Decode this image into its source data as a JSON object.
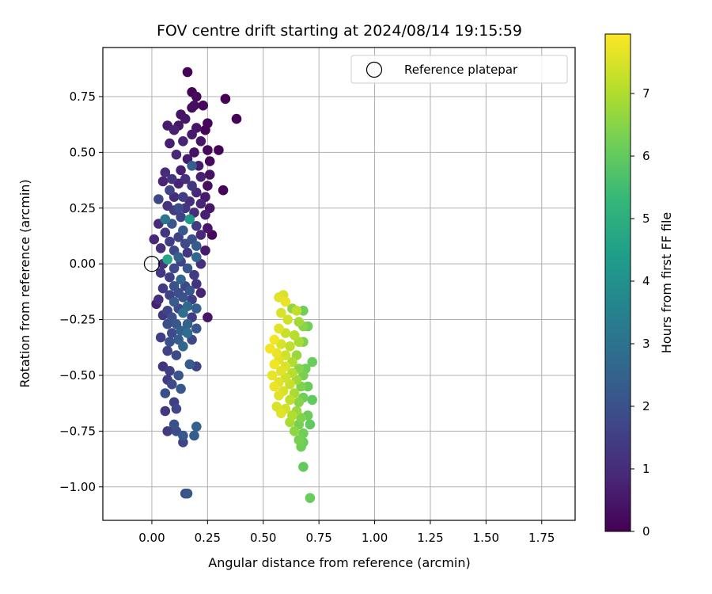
{
  "chart_data": {
    "type": "scatter",
    "title": "FOV centre drift starting at 2024/08/14 19:15:59",
    "xlabel": "Angular distance from reference (arcmin)",
    "ylabel": "Rotation from reference (arcmin)",
    "xlim": [
      -0.22,
      1.9
    ],
    "ylim": [
      -1.15,
      0.97
    ],
    "x_ticks": [
      0.0,
      0.25,
      0.5,
      0.75,
      1.0,
      1.25,
      1.5,
      1.75
    ],
    "x_tick_labels": [
      "0.00",
      "0.25",
      "0.50",
      "0.75",
      "1.00",
      "1.25",
      "1.50",
      "1.75"
    ],
    "y_ticks": [
      0.75,
      0.5,
      0.25,
      0.0,
      -0.25,
      -0.5,
      -0.75,
      -1.0
    ],
    "y_tick_labels": [
      "0.75",
      "0.50",
      "0.25",
      "0.00",
      "−0.25",
      "−0.50",
      "−0.75",
      "−1.00"
    ],
    "grid": true,
    "legend": {
      "placement": "top-right",
      "entries": [
        {
          "label": "Reference platepar",
          "marker": "open-circle"
        }
      ]
    },
    "reference_point": {
      "x": 0.0,
      "y": 0.0
    },
    "colorbar": {
      "label": "Hours from first FF file",
      "min": 0,
      "max": 7.95,
      "ticks": [
        0,
        1,
        2,
        3,
        4,
        5,
        6,
        7
      ],
      "tick_labels": [
        "0",
        "1",
        "2",
        "3",
        "4",
        "5",
        "6",
        "7"
      ],
      "colormap": "viridis"
    },
    "colormap_stops": [
      "#440154",
      "#482878",
      "#3e4989",
      "#31688e",
      "#26828e",
      "#1f9e89",
      "#35b779",
      "#6ece58",
      "#b5de2b",
      "#fde725"
    ],
    "series": [
      {
        "points": [
          [
            0.16,
            0.86,
            0.05
          ],
          [
            0.33,
            0.74,
            0.05
          ],
          [
            0.38,
            0.65,
            0.05
          ],
          [
            0.18,
            0.77,
            0.1
          ],
          [
            0.2,
            0.75,
            0.2
          ],
          [
            0.19,
            0.71,
            0.3
          ],
          [
            0.18,
            0.7,
            0.25
          ],
          [
            0.13,
            0.67,
            0.4
          ],
          [
            0.23,
            0.71,
            0.15
          ],
          [
            0.15,
            0.65,
            0.5
          ],
          [
            0.25,
            0.63,
            0.1
          ],
          [
            0.07,
            0.62,
            0.6
          ],
          [
            0.1,
            0.6,
            0.7
          ],
          [
            0.12,
            0.62,
            0.5
          ],
          [
            0.2,
            0.61,
            0.45
          ],
          [
            0.24,
            0.6,
            0.1
          ],
          [
            0.18,
            0.58,
            0.6
          ],
          [
            0.08,
            0.54,
            0.7
          ],
          [
            0.14,
            0.55,
            0.8
          ],
          [
            0.22,
            0.55,
            0.5
          ],
          [
            0.3,
            0.51,
            0.1
          ],
          [
            0.25,
            0.51,
            0.15
          ],
          [
            0.19,
            0.5,
            0.4
          ],
          [
            0.11,
            0.49,
            0.9
          ],
          [
            0.16,
            0.47,
            0.6
          ],
          [
            0.26,
            0.46,
            0.2
          ],
          [
            0.21,
            0.44,
            0.6
          ],
          [
            0.18,
            0.44,
            2.4
          ],
          [
            0.13,
            0.42,
            0.7
          ],
          [
            0.06,
            0.41,
            1.0
          ],
          [
            0.26,
            0.4,
            0.4
          ],
          [
            0.22,
            0.39,
            0.7
          ],
          [
            0.15,
            0.38,
            1.1
          ],
          [
            0.09,
            0.38,
            1.2
          ],
          [
            0.05,
            0.37,
            0.8
          ],
          [
            0.12,
            0.36,
            0.8
          ],
          [
            0.18,
            0.35,
            1.3
          ],
          [
            0.25,
            0.35,
            0.3
          ],
          [
            0.08,
            0.33,
            1.6
          ],
          [
            0.32,
            0.33,
            0.1
          ],
          [
            0.2,
            0.32,
            0.9
          ],
          [
            0.14,
            0.3,
            1.5
          ],
          [
            0.1,
            0.3,
            1.0
          ],
          [
            0.24,
            0.3,
            0.6
          ],
          [
            0.03,
            0.29,
            1.7
          ],
          [
            0.17,
            0.28,
            1.1
          ],
          [
            0.22,
            0.27,
            0.8
          ],
          [
            0.07,
            0.26,
            1.2
          ],
          [
            0.12,
            0.25,
            1.8
          ],
          [
            0.15,
            0.25,
            1.3
          ],
          [
            0.26,
            0.25,
            0.5
          ],
          [
            0.1,
            0.24,
            1.4
          ],
          [
            0.19,
            0.23,
            1.0
          ],
          [
            0.24,
            0.22,
            0.7
          ],
          [
            0.06,
            0.2,
            3.1
          ],
          [
            0.17,
            0.2,
            4.3
          ],
          [
            0.13,
            0.21,
            1.6
          ],
          [
            0.03,
            0.18,
            1.0
          ],
          [
            0.09,
            0.18,
            2.1
          ],
          [
            0.2,
            0.17,
            1.4
          ],
          [
            0.25,
            0.16,
            0.5
          ],
          [
            0.14,
            0.15,
            2.2
          ],
          [
            0.06,
            0.14,
            1.3
          ],
          [
            0.27,
            0.13,
            0.2
          ],
          [
            0.22,
            0.13,
            0.9
          ],
          [
            0.01,
            0.11,
            0.9
          ],
          [
            0.12,
            0.12,
            1.6
          ],
          [
            0.18,
            0.11,
            2.0
          ],
          [
            0.08,
            0.1,
            1.5
          ],
          [
            0.15,
            0.09,
            1.8
          ],
          [
            0.2,
            0.08,
            2.3
          ],
          [
            0.04,
            0.07,
            1.1
          ],
          [
            0.1,
            0.06,
            1.7
          ],
          [
            0.24,
            0.06,
            0.6
          ],
          [
            0.16,
            0.05,
            1.3
          ],
          [
            0.12,
            0.03,
            2.5
          ],
          [
            0.2,
            0.03,
            2.6
          ],
          [
            0.07,
            0.02,
            4.7
          ],
          [
            0.05,
            0.0,
            1.2
          ],
          [
            0.13,
            0.01,
            1.6
          ],
          [
            0.22,
            0.0,
            1.1
          ],
          [
            0.1,
            -0.02,
            1.8
          ],
          [
            0.16,
            -0.02,
            2.1
          ],
          [
            0.04,
            -0.04,
            1.3
          ],
          [
            0.19,
            -0.05,
            1.4
          ],
          [
            0.13,
            -0.07,
            2.6
          ],
          [
            0.08,
            -0.06,
            1.5
          ],
          [
            0.1,
            -0.1,
            2.0
          ],
          [
            0.15,
            -0.1,
            1.7
          ],
          [
            0.2,
            -0.09,
            1.2
          ],
          [
            0.05,
            -0.11,
            1.4
          ],
          [
            0.17,
            -0.12,
            2.2
          ],
          [
            0.12,
            -0.13,
            1.9
          ],
          [
            0.22,
            -0.13,
            0.8
          ],
          [
            0.08,
            -0.14,
            1.6
          ],
          [
            0.14,
            -0.15,
            2.0
          ],
          [
            0.18,
            -0.16,
            1.5
          ],
          [
            0.03,
            -0.16,
            1.1
          ],
          [
            0.1,
            -0.17,
            2.3
          ],
          [
            0.02,
            -0.18,
            0.7
          ],
          [
            0.16,
            -0.19,
            2.7
          ],
          [
            0.12,
            -0.2,
            1.8
          ],
          [
            0.07,
            -0.21,
            1.6
          ],
          [
            0.2,
            -0.2,
            2.4
          ],
          [
            0.05,
            -0.23,
            1.3
          ],
          [
            0.14,
            -0.22,
            2.9
          ],
          [
            0.09,
            -0.24,
            2.0
          ],
          [
            0.18,
            -0.24,
            1.5
          ],
          [
            0.25,
            -0.24,
            0.5
          ],
          [
            0.11,
            -0.27,
            2.2
          ],
          [
            0.16,
            -0.27,
            2.5
          ],
          [
            0.07,
            -0.27,
            1.9
          ],
          [
            0.13,
            -0.3,
            2.4
          ],
          [
            0.2,
            -0.29,
            2.1
          ],
          [
            0.09,
            -0.31,
            1.8
          ],
          [
            0.16,
            -0.31,
            2.8
          ],
          [
            0.04,
            -0.33,
            1.5
          ],
          [
            0.12,
            -0.34,
            2.3
          ],
          [
            0.18,
            -0.34,
            1.7
          ],
          [
            0.08,
            -0.35,
            2.0
          ],
          [
            0.14,
            -0.37,
            2.6
          ],
          [
            0.07,
            -0.39,
            1.6
          ],
          [
            0.11,
            -0.41,
            1.8
          ],
          [
            0.05,
            -0.46,
            1.2
          ],
          [
            0.17,
            -0.45,
            2.3
          ],
          [
            0.2,
            -0.46,
            1.6
          ],
          [
            0.08,
            -0.48,
            1.5
          ],
          [
            0.12,
            -0.5,
            2.1
          ],
          [
            0.07,
            -0.52,
            1.4
          ],
          [
            0.09,
            -0.54,
            1.8
          ],
          [
            0.13,
            -0.56,
            2.2
          ],
          [
            0.06,
            -0.58,
            1.9
          ],
          [
            0.1,
            -0.62,
            1.5
          ],
          [
            0.06,
            -0.66,
            1.3
          ],
          [
            0.11,
            -0.65,
            1.7
          ],
          [
            0.1,
            -0.72,
            2.0
          ],
          [
            0.07,
            -0.75,
            1.4
          ],
          [
            0.11,
            -0.75,
            1.9
          ],
          [
            0.14,
            -0.77,
            2.2
          ],
          [
            0.2,
            -0.73,
            2.5
          ],
          [
            0.19,
            -0.77,
            2.3
          ],
          [
            0.14,
            -0.8,
            1.6
          ],
          [
            0.15,
            -1.03,
            1.8
          ],
          [
            0.16,
            -1.03,
            2.2
          ]
        ]
      },
      {
        "points": [
          [
            0.57,
            -0.15,
            7.6
          ],
          [
            0.59,
            -0.14,
            7.5
          ],
          [
            0.6,
            -0.17,
            7.7
          ],
          [
            0.65,
            -0.21,
            7.2
          ],
          [
            0.68,
            -0.21,
            6.2
          ],
          [
            0.63,
            -0.2,
            6.6
          ],
          [
            0.58,
            -0.22,
            7.5
          ],
          [
            0.61,
            -0.25,
            7.4
          ],
          [
            0.66,
            -0.26,
            6.8
          ],
          [
            0.68,
            -0.28,
            6.5
          ],
          [
            0.7,
            -0.28,
            6.2
          ],
          [
            0.57,
            -0.29,
            7.6
          ],
          [
            0.6,
            -0.31,
            7.3
          ],
          [
            0.64,
            -0.32,
            7.1
          ],
          [
            0.55,
            -0.34,
            7.8
          ],
          [
            0.66,
            -0.35,
            6.9
          ],
          [
            0.68,
            -0.35,
            6.4
          ],
          [
            0.58,
            -0.36,
            7.5
          ],
          [
            0.62,
            -0.37,
            7.2
          ],
          [
            0.53,
            -0.38,
            7.8
          ],
          [
            0.56,
            -0.4,
            7.7
          ],
          [
            0.6,
            -0.41,
            7.4
          ],
          [
            0.65,
            -0.41,
            6.7
          ],
          [
            0.57,
            -0.43,
            7.6
          ],
          [
            0.63,
            -0.44,
            7.0
          ],
          [
            0.72,
            -0.44,
            6.1
          ],
          [
            0.55,
            -0.45,
            7.8
          ],
          [
            0.6,
            -0.46,
            7.5
          ],
          [
            0.66,
            -0.47,
            6.5
          ],
          [
            0.69,
            -0.47,
            6.2
          ],
          [
            0.58,
            -0.48,
            7.6
          ],
          [
            0.63,
            -0.49,
            7.1
          ],
          [
            0.54,
            -0.5,
            7.7
          ],
          [
            0.68,
            -0.5,
            6.3
          ],
          [
            0.6,
            -0.51,
            7.4
          ],
          [
            0.65,
            -0.52,
            6.8
          ],
          [
            0.57,
            -0.53,
            7.6
          ],
          [
            0.62,
            -0.54,
            7.3
          ],
          [
            0.55,
            -0.55,
            7.7
          ],
          [
            0.67,
            -0.55,
            6.4
          ],
          [
            0.7,
            -0.55,
            6.1
          ],
          [
            0.59,
            -0.57,
            7.5
          ],
          [
            0.64,
            -0.58,
            6.9
          ],
          [
            0.57,
            -0.59,
            7.6
          ],
          [
            0.68,
            -0.6,
            6.2
          ],
          [
            0.72,
            -0.61,
            6.0
          ],
          [
            0.62,
            -0.61,
            7.2
          ],
          [
            0.66,
            -0.62,
            6.5
          ],
          [
            0.56,
            -0.64,
            7.5
          ],
          [
            0.6,
            -0.65,
            7.4
          ],
          [
            0.65,
            -0.66,
            6.7
          ],
          [
            0.58,
            -0.67,
            7.6
          ],
          [
            0.63,
            -0.68,
            7.0
          ],
          [
            0.67,
            -0.69,
            6.4
          ],
          [
            0.7,
            -0.68,
            6.1
          ],
          [
            0.62,
            -0.71,
            6.9
          ],
          [
            0.66,
            -0.72,
            6.3
          ],
          [
            0.71,
            -0.72,
            6.0
          ],
          [
            0.64,
            -0.75,
            6.6
          ],
          [
            0.68,
            -0.76,
            6.2
          ],
          [
            0.66,
            -0.79,
            6.3
          ],
          [
            0.68,
            -0.8,
            6.1
          ],
          [
            0.67,
            -0.82,
            6.2
          ],
          [
            0.68,
            -0.91,
            6.0
          ],
          [
            0.71,
            -1.05,
            6.1
          ]
        ]
      }
    ]
  }
}
